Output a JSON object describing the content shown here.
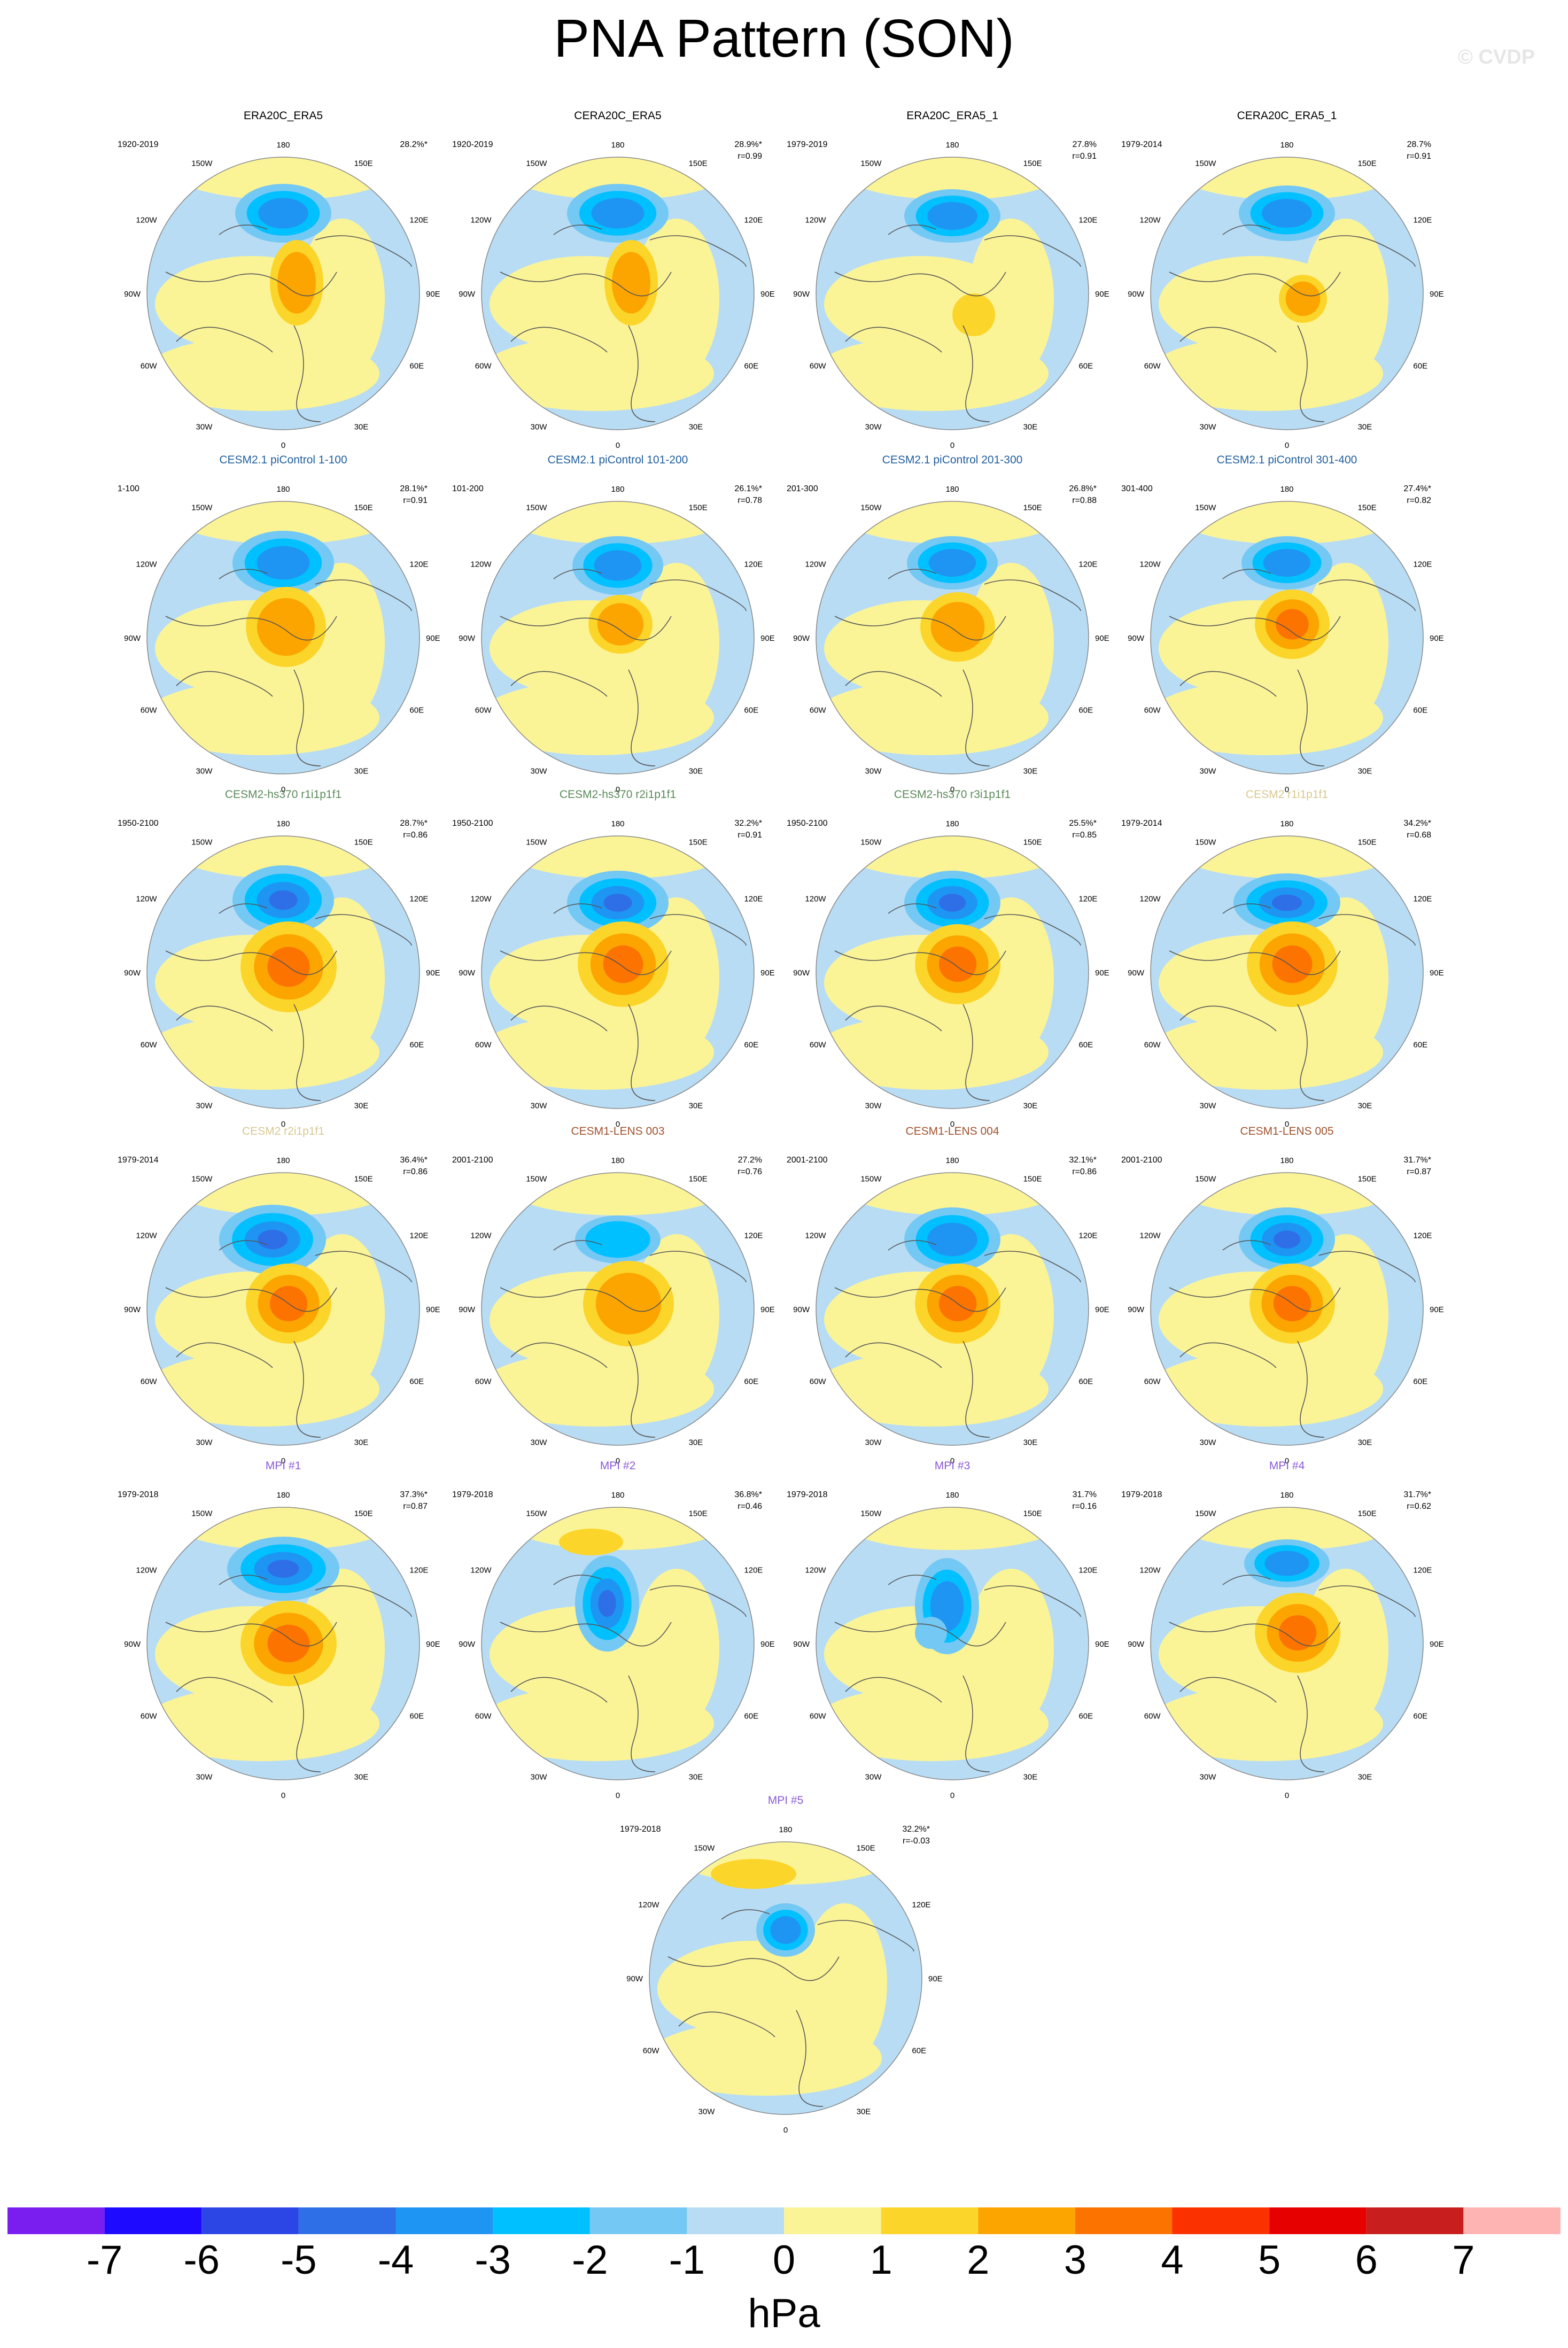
{
  "title": "PNA Pattern (SON)",
  "watermark": "© CVDP",
  "units": "hPa",
  "palette": {
    "ocean_light_blue": "#b7dcf4",
    "pale_yellow": "#fbf497",
    "coast_gray": "#555555",
    "circle_gray": "#888888"
  },
  "colorbar": {
    "colors": [
      "#7a1ef0",
      "#1e0aff",
      "#2c46e6",
      "#2e6fe8",
      "#1e95f2",
      "#00c0ff",
      "#74c8f4",
      "#b7dcf4",
      "#fbf497",
      "#fcd52a",
      "#fca500",
      "#fc7300",
      "#fc3100",
      "#e60000",
      "#c81e1e",
      "#ffb4b4"
    ],
    "labels": [
      "-7",
      "-6",
      "-5",
      "-4",
      "-3",
      "-2",
      "-1",
      "0",
      "1",
      "2",
      "3",
      "4",
      "5",
      "6",
      "7"
    ]
  },
  "longitude_labels": {
    "top": "180",
    "upper_left": "150W",
    "upper_right": "150E",
    "left_upper": "120W",
    "right_upper": "120E",
    "left": "90W",
    "right": "90E",
    "left_lower": "60W",
    "right_lower": "60E",
    "lower_left": "30W",
    "lower_right": "30E",
    "bottom": "0"
  },
  "panels": [
    {
      "title": "ERA20C_ERA5",
      "title_color": "#000000",
      "period": "1920-2019",
      "pct": "28.2%*",
      "r": ""
    },
    {
      "title": "CERA20C_ERA5",
      "title_color": "#000000",
      "period": "1920-2019",
      "pct": "28.9%*",
      "r": "r=0.99"
    },
    {
      "title": "ERA20C_ERA5_1",
      "title_color": "#000000",
      "period": "1979-2019",
      "pct": "27.8%",
      "r": "r=0.91"
    },
    {
      "title": "CERA20C_ERA5_1",
      "title_color": "#000000",
      "period": "1979-2014",
      "pct": "28.7%",
      "r": "r=0.91"
    },
    {
      "title": "CESM2.1 piControl 1-100",
      "title_color": "#1f5fa0",
      "period": "1-100",
      "pct": "28.1%*",
      "r": "r=0.91"
    },
    {
      "title": "CESM2.1 piControl 101-200",
      "title_color": "#1f5fa0",
      "period": "101-200",
      "pct": "26.1%*",
      "r": "r=0.78"
    },
    {
      "title": "CESM2.1 piControl 201-300",
      "title_color": "#1f5fa0",
      "period": "201-300",
      "pct": "26.8%*",
      "r": "r=0.88"
    },
    {
      "title": "CESM2.1 piControl 301-400",
      "title_color": "#1f5fa0",
      "period": "301-400",
      "pct": "27.4%*",
      "r": "r=0.82"
    },
    {
      "title": "CESM2-hs370 r1i1p1f1",
      "title_color": "#5a8a5a",
      "period": "1950-2100",
      "pct": "28.7%*",
      "r": "r=0.86"
    },
    {
      "title": "CESM2-hs370 r2i1p1f1",
      "title_color": "#5a8a5a",
      "period": "1950-2100",
      "pct": "32.2%*",
      "r": "r=0.91"
    },
    {
      "title": "CESM2-hs370 r3i1p1f1",
      "title_color": "#5a8a5a",
      "period": "1950-2100",
      "pct": "25.5%*",
      "r": "r=0.85"
    },
    {
      "title": "CESM2 r1i1p1f1",
      "title_color": "#d8c890",
      "period": "1979-2014",
      "pct": "34.2%*",
      "r": "r=0.68"
    },
    {
      "title": "CESM2 r2i1p1f1",
      "title_color": "#d8c890",
      "period": "1979-2014",
      "pct": "36.4%*",
      "r": "r=0.86"
    },
    {
      "title": "CESM1-LENS 003",
      "title_color": "#a0522d",
      "period": "2001-2100",
      "pct": "27.2%",
      "r": "r=0.76"
    },
    {
      "title": "CESM1-LENS 004",
      "title_color": "#a0522d",
      "period": "2001-2100",
      "pct": "32.1%*",
      "r": "r=0.86"
    },
    {
      "title": "CESM1-LENS 005",
      "title_color": "#a0522d",
      "period": "2001-2100",
      "pct": "31.7%*",
      "r": "r=0.87"
    },
    {
      "title": "MPI #1",
      "title_color": "#8a5ad8",
      "period": "1979-2018",
      "pct": "37.3%*",
      "r": "r=0.87"
    },
    {
      "title": "MPI #2",
      "title_color": "#8a5ad8",
      "period": "1979-2018",
      "pct": "36.8%*",
      "r": "r=0.46"
    },
    {
      "title": "MPI #3",
      "title_color": "#8a5ad8",
      "period": "1979-2018",
      "pct": "31.7%",
      "r": "r=0.16"
    },
    {
      "title": "MPI #4",
      "title_color": "#8a5ad8",
      "period": "1979-2018",
      "pct": "31.7%*",
      "r": "r=0.62"
    },
    {
      "title": "MPI #5",
      "title_color": "#8a5ad8",
      "period": "1979-2018",
      "pct": "32.2%*",
      "r": "r=-0.03"
    }
  ]
}
